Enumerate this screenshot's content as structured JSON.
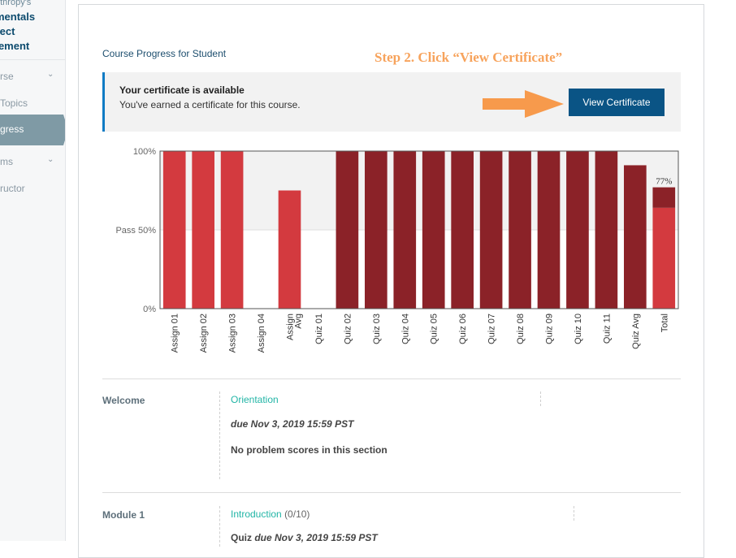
{
  "sidebar": {
    "brand": [
      "nthropy's",
      "mentals",
      "ject",
      "gement"
    ],
    "items": [
      {
        "label": "rse",
        "has_chevron": true
      },
      {
        "label": "Topics",
        "has_chevron": false
      },
      {
        "label": "gress",
        "active": true
      },
      {
        "label": "ms",
        "has_chevron": true
      },
      {
        "label": "ructor",
        "has_chevron": false
      }
    ]
  },
  "page": {
    "title": "Course Progress for Student",
    "step_annotation": "Step 2. Click “View Certificate”"
  },
  "certificate": {
    "heading": "Your certificate is available",
    "message": "You've earned a certificate for this course.",
    "button_label": "View Certificate",
    "accent_color": "#0f7bc4",
    "button_color": "#0a5485",
    "arrow_color": "#f79a4c"
  },
  "chart_data": {
    "type": "bar",
    "y_ticks": [
      {
        "value": 100,
        "label": "100%"
      },
      {
        "value": 50,
        "label": "Pass 50%"
      },
      {
        "value": 0,
        "label": "0%"
      }
    ],
    "ylim": [
      0,
      100
    ],
    "pass_threshold": 50,
    "colors": {
      "assignment": "#d33a3f",
      "quiz": "#8b2228",
      "total_lower": "#d33a3f",
      "total_upper": "#8b2228",
      "above_pass_band": "#f2f2f2"
    },
    "categories": [
      "Assign 01",
      "Assign 02",
      "Assign 03",
      "Assign 04",
      "Assign Avg",
      "Quiz 01",
      "Quiz 02",
      "Quiz 03",
      "Quiz 04",
      "Quiz 05",
      "Quiz 06",
      "Quiz 07",
      "Quiz 08",
      "Quiz 09",
      "Quiz 10",
      "Quiz 11",
      "Quiz Avg",
      "Total"
    ],
    "values": [
      100,
      100,
      100,
      0,
      75,
      0,
      100,
      100,
      100,
      100,
      100,
      100,
      100,
      100,
      100,
      100,
      91,
      77
    ],
    "kinds": [
      "assignment",
      "assignment",
      "assignment",
      "assignment",
      "assignment",
      "quiz",
      "quiz",
      "quiz",
      "quiz",
      "quiz",
      "quiz",
      "quiz",
      "quiz",
      "quiz",
      "quiz",
      "quiz",
      "quiz",
      "total"
    ],
    "total_split": 64,
    "total_label": "77%"
  },
  "sections": [
    {
      "name": "Welcome",
      "subsection": {
        "link": "Orientation",
        "count": ""
      },
      "due": "due Nov 3, 2019 15:59 PST",
      "note": "No problem scores in this section"
    },
    {
      "name": "Module 1",
      "subsection": {
        "link": "Introduction",
        "count": "(0/10)"
      },
      "quiz_prefix": "Quiz",
      "due": "due Nov 3, 2019 15:59 PST"
    }
  ]
}
